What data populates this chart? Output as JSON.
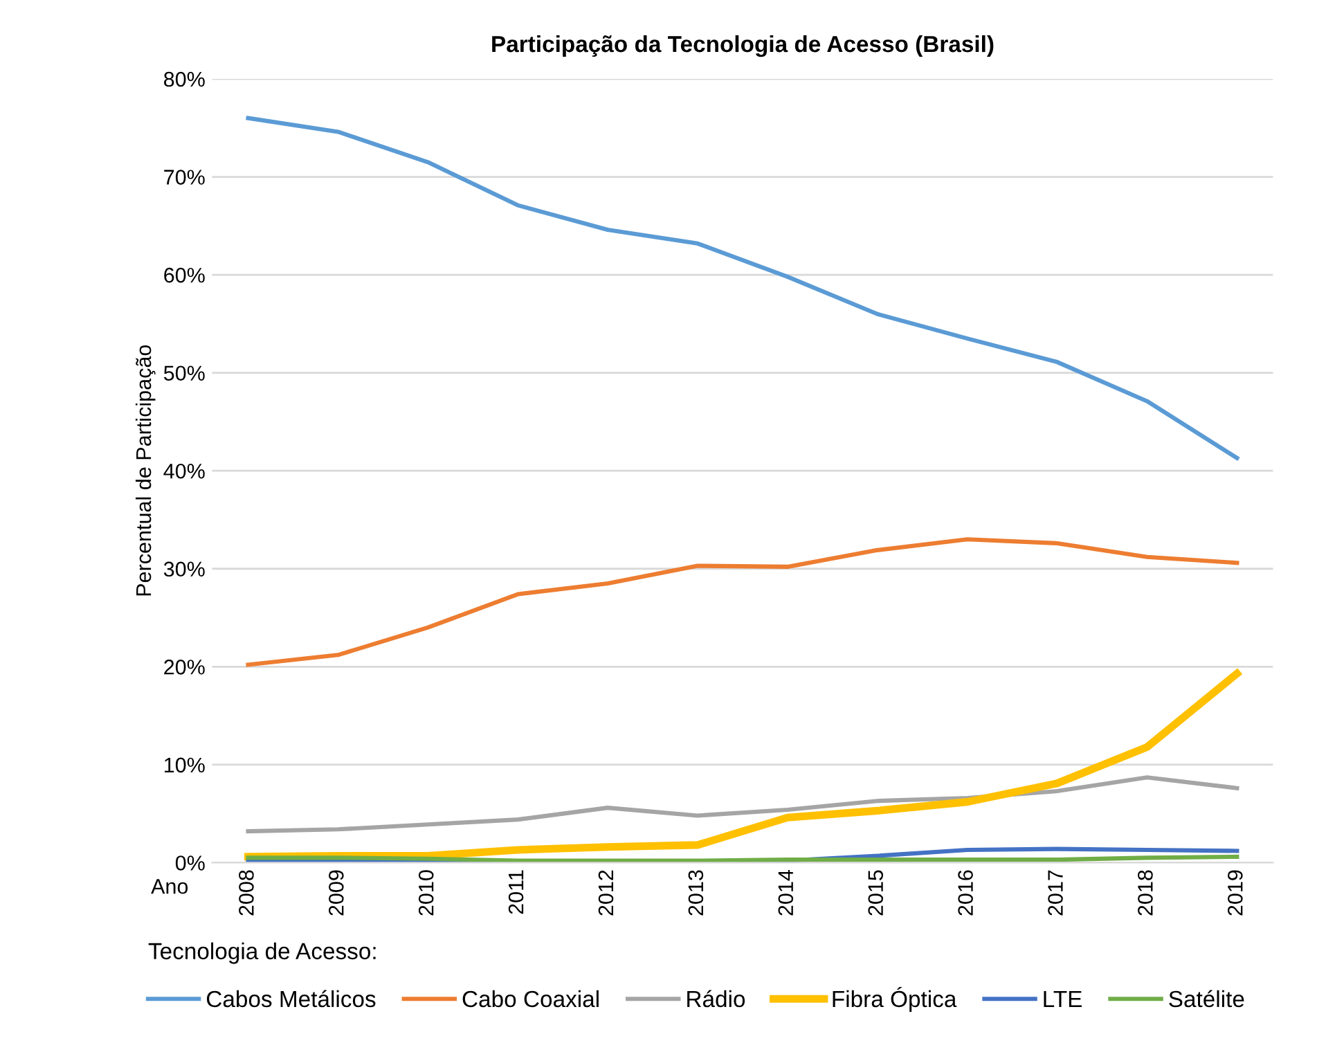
{
  "chart_data": {
    "type": "line",
    "title": "Participação da Tecnologia de Acesso (Brasil)",
    "xlabel": "Ano",
    "ylabel": "Percentual de Participação",
    "legend_title": "Tecnologia de Acesso:",
    "legend": "bottom",
    "grid": "y",
    "marker": "none",
    "categories": [
      "2008",
      "2009",
      "2010",
      "2011",
      "2012",
      "2013",
      "2014",
      "2015",
      "2016",
      "2017",
      "2018",
      "2019"
    ],
    "ylim": [
      0,
      80
    ],
    "yticks": [
      {
        "value": 0,
        "label": "0%"
      },
      {
        "value": 10,
        "label": "10%"
      },
      {
        "value": 20,
        "label": "20%"
      },
      {
        "value": 30,
        "label": "30%"
      },
      {
        "value": 40,
        "label": "40%"
      },
      {
        "value": 50,
        "label": "50%"
      },
      {
        "value": 60,
        "label": "60%"
      },
      {
        "value": 70,
        "label": "70%"
      },
      {
        "value": 80,
        "label": "80%"
      }
    ],
    "series": [
      {
        "name": "Cabos Metálicos",
        "color": "#5b9bd5",
        "values": [
          76.0,
          74.6,
          71.5,
          67.1,
          64.6,
          63.2,
          59.8,
          56.0,
          53.5,
          51.1,
          47.1,
          41.3
        ]
      },
      {
        "name": "Cabo Coaxial",
        "color": "#ed7d31",
        "values": [
          20.2,
          21.2,
          24.0,
          27.4,
          28.5,
          30.3,
          30.2,
          31.9,
          33.0,
          32.6,
          31.2,
          30.6
        ]
      },
      {
        "name": "Rádio",
        "color": "#a5a5a5",
        "values": [
          3.2,
          3.4,
          3.9,
          4.4,
          5.6,
          4.8,
          5.4,
          6.3,
          6.6,
          7.3,
          8.7,
          7.6
        ]
      },
      {
        "name": "Fibra Óptica",
        "color": "#ffc000",
        "values": [
          0.6,
          0.7,
          0.7,
          1.3,
          1.6,
          1.8,
          4.6,
          5.3,
          6.2,
          8.1,
          11.8,
          19.3
        ]
      },
      {
        "name": "LTE",
        "color": "#4472c4",
        "values": [
          0.1,
          0.1,
          0.1,
          0.1,
          0.1,
          0.1,
          0.2,
          0.7,
          1.3,
          1.4,
          1.3,
          1.2
        ]
      },
      {
        "name": "Satélite",
        "color": "#70ad47",
        "values": [
          0.5,
          0.5,
          0.4,
          0.2,
          0.2,
          0.2,
          0.3,
          0.3,
          0.3,
          0.3,
          0.5,
          0.6
        ]
      }
    ]
  }
}
